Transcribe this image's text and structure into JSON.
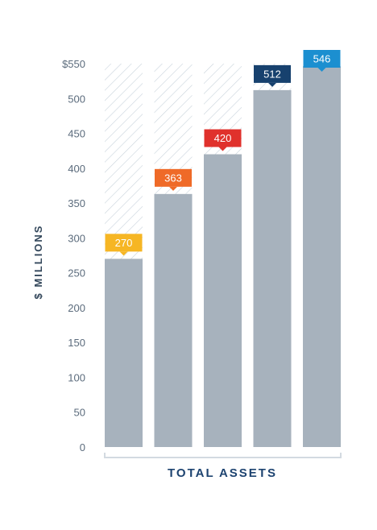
{
  "chart_data": {
    "type": "bar",
    "categories": [
      "",
      "",
      "",
      "",
      ""
    ],
    "values": [
      270,
      363,
      420,
      512,
      546
    ],
    "value_labels": [
      "270",
      "363",
      "420",
      "512",
      "546"
    ],
    "badge_colors": [
      "#f6b624",
      "#ef6a28",
      "#e0312c",
      "#17416e",
      "#1c8fd0"
    ],
    "bar_color": "#a7b2bd",
    "hatch_color": "#c9d3dc",
    "ylim": [
      0,
      550
    ],
    "yticks": [
      0,
      50,
      100,
      150,
      200,
      250,
      300,
      350,
      400,
      450,
      500,
      550
    ],
    "ytick_labels": [
      "0",
      "50",
      "100",
      "150",
      "200",
      "250",
      "300",
      "350",
      "400",
      "450",
      "500",
      "$550"
    ],
    "ylabel": "$ MILLIONS",
    "xlabel": "TOTAL ASSETS",
    "grid": false,
    "legend": "none"
  }
}
